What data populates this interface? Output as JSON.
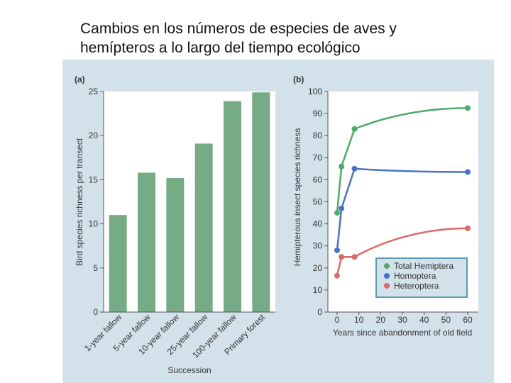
{
  "slide": {
    "title_line1": "Cambios en los números de especies de aves y",
    "title_line2": "hemípteros a lo largo del tiempo ecológico"
  },
  "colors": {
    "panel_bg": "#d3e2ea",
    "bar": "#75ac85",
    "total": "#4caa6a",
    "homoptera": "#4a72c2",
    "heteroptera": "#d96a6a"
  },
  "chart_data": [
    {
      "type": "bar",
      "panel_label": "(a)",
      "title": "",
      "xlabel": "Succession",
      "ylabel": "Bird species richness per transect",
      "ylim": [
        0,
        25
      ],
      "yticks": [
        0,
        5,
        10,
        15,
        20,
        25
      ],
      "categories": [
        "1-year fallow",
        "5-year fallow",
        "10-year fallow",
        "25-year fallow",
        "100-year fallow",
        "Primary forest"
      ],
      "values": [
        11,
        15.8,
        15.2,
        19.1,
        23.9,
        24.9
      ]
    },
    {
      "type": "line",
      "panel_label": "(b)",
      "title": "",
      "xlabel": "Years since abandonment of old field",
      "ylabel": "Hemipterous insect species richness",
      "xlim": [
        0,
        60
      ],
      "ylim": [
        0,
        100
      ],
      "xticks": [
        0,
        10,
        20,
        30,
        40,
        50,
        60
      ],
      "yticks": [
        0,
        10,
        20,
        30,
        40,
        50,
        60,
        70,
        80,
        90,
        100
      ],
      "legend_position": "bottom-right",
      "series": [
        {
          "name": "Total Hemiptera",
          "x": [
            0,
            2,
            8,
            60
          ],
          "y": [
            45,
            66,
            83,
            92.5
          ]
        },
        {
          "name": "Homoptera",
          "x": [
            0,
            2,
            8,
            60
          ],
          "y": [
            28,
            47,
            65,
            63.5
          ]
        },
        {
          "name": "Heteroptera",
          "x": [
            0,
            2,
            8,
            60
          ],
          "y": [
            16.5,
            25,
            25,
            38
          ]
        }
      ]
    }
  ]
}
